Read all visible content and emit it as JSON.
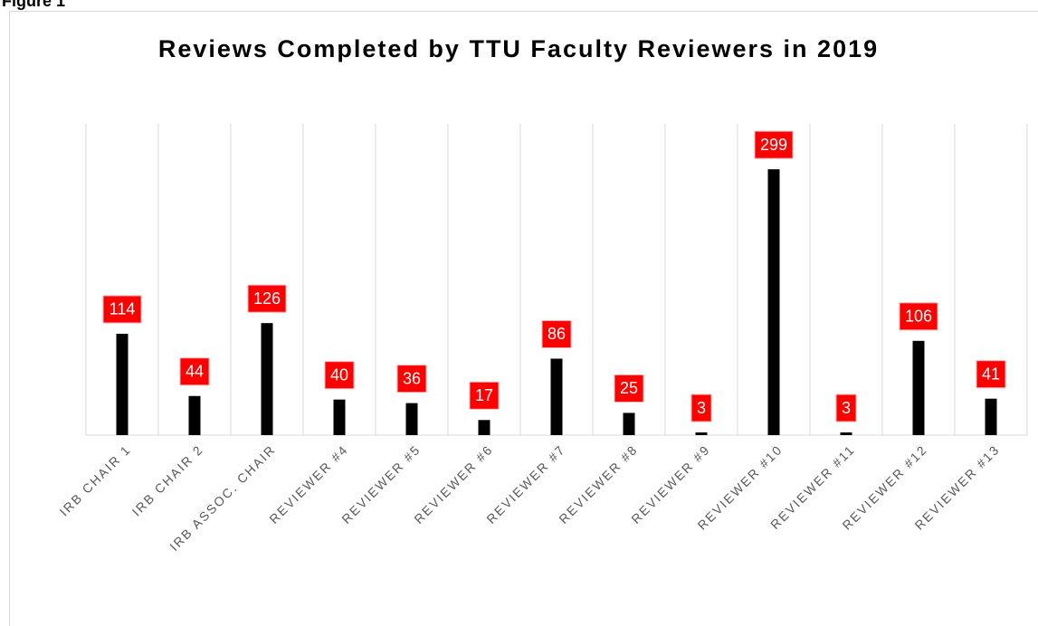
{
  "figure_label": "Figure 1",
  "chart_data": {
    "type": "bar",
    "title": "Reviews Completed by TTU Faculty Reviewers in 2019",
    "categories": [
      "IRB CHAIR 1",
      "IRB CHAIR 2",
      "IRB ASSOC. CHAIR",
      "REVIEWER #4",
      "REVIEWER #5",
      "REVIEWER #6",
      "REVIEWER #7",
      "REVIEWER #8",
      "REVIEWER #9",
      "REVIEWER #10",
      "REVIEWER #11",
      "REVIEWER #12",
      "REVIEWER #13"
    ],
    "values": [
      114,
      44,
      126,
      40,
      36,
      17,
      86,
      25,
      3,
      299,
      3,
      106,
      41
    ],
    "color": "#000000",
    "label_color": "#ff0000",
    "ylim": [
      0,
      350
    ],
    "grid": true
  }
}
